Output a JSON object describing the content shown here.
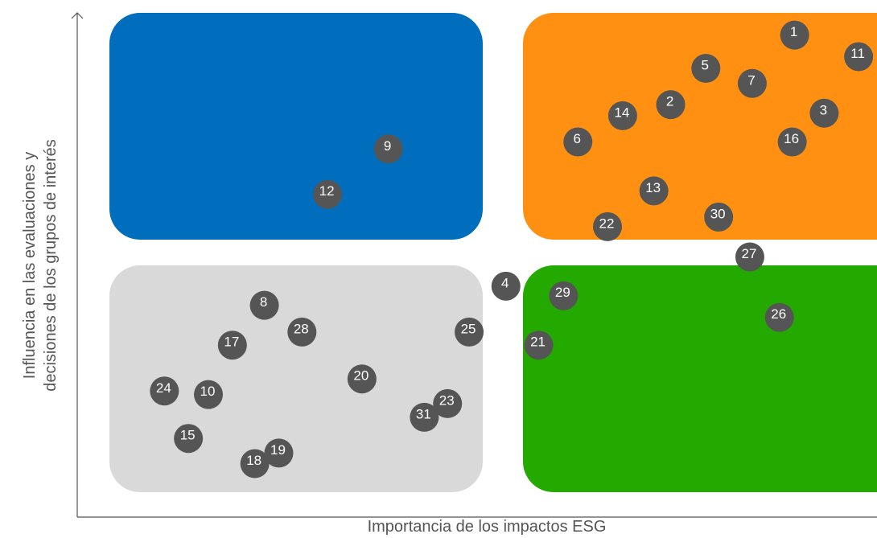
{
  "chart_data": {
    "type": "scatter",
    "title": "",
    "xlabel": "Importancia de los impactos ESG",
    "ylabel_lines": [
      "Influencia en las evaluaciones y",
      "decisiones de los grupos de interés"
    ],
    "xlim": [
      0,
      100
    ],
    "ylim": [
      0,
      100
    ],
    "grid": false,
    "legend": "none",
    "quadrants": [
      {
        "name": "top-left",
        "color": "#006ebd"
      },
      {
        "name": "top-right",
        "color": "#ff9012"
      },
      {
        "name": "bottom-left",
        "color": "#d9d9d9"
      },
      {
        "name": "bottom-right",
        "color": "#23a900"
      }
    ],
    "point_color": "#555555",
    "label_color": "#ffffff",
    "points": [
      {
        "label": "1",
        "x": 89.7,
        "y": 95.6
      },
      {
        "label": "2",
        "x": 74.2,
        "y": 81.8
      },
      {
        "label": "3",
        "x": 93.4,
        "y": 80.1
      },
      {
        "label": "4",
        "x": 53.6,
        "y": 45.8
      },
      {
        "label": "5",
        "x": 78.6,
        "y": 89.0
      },
      {
        "label": "6",
        "x": 62.6,
        "y": 74.4
      },
      {
        "label": "7",
        "x": 84.4,
        "y": 86.0
      },
      {
        "label": "8",
        "x": 23.4,
        "y": 42.0
      },
      {
        "label": "9",
        "x": 38.9,
        "y": 73.0
      },
      {
        "label": "10",
        "x": 16.4,
        "y": 24.3
      },
      {
        "label": "11",
        "x": 97.7,
        "y": 91.3
      },
      {
        "label": "12",
        "x": 31.3,
        "y": 64.0
      },
      {
        "label": "13",
        "x": 72.1,
        "y": 64.7
      },
      {
        "label": "14",
        "x": 68.2,
        "y": 79.6
      },
      {
        "label": "15",
        "x": 13.9,
        "y": 15.6
      },
      {
        "label": "16",
        "x": 89.4,
        "y": 74.4
      },
      {
        "label": "17",
        "x": 19.4,
        "y": 34.1
      },
      {
        "label": "18",
        "x": 22.2,
        "y": 10.6
      },
      {
        "label": "19",
        "x": 25.2,
        "y": 12.7
      },
      {
        "label": "20",
        "x": 35.6,
        "y": 27.4
      },
      {
        "label": "21",
        "x": 57.7,
        "y": 34.1
      },
      {
        "label": "22",
        "x": 66.3,
        "y": 57.6
      },
      {
        "label": "23",
        "x": 46.3,
        "y": 22.5
      },
      {
        "label": "24",
        "x": 10.9,
        "y": 25.0
      },
      {
        "label": "25",
        "x": 49.0,
        "y": 36.7
      },
      {
        "label": "26",
        "x": 87.8,
        "y": 39.6
      },
      {
        "label": "27",
        "x": 84.1,
        "y": 51.6
      },
      {
        "label": "28",
        "x": 28.1,
        "y": 36.7
      },
      {
        "label": "29",
        "x": 60.8,
        "y": 43.9
      },
      {
        "label": "30",
        "x": 80.2,
        "y": 59.5
      },
      {
        "label": "31",
        "x": 43.4,
        "y": 19.8
      }
    ]
  }
}
